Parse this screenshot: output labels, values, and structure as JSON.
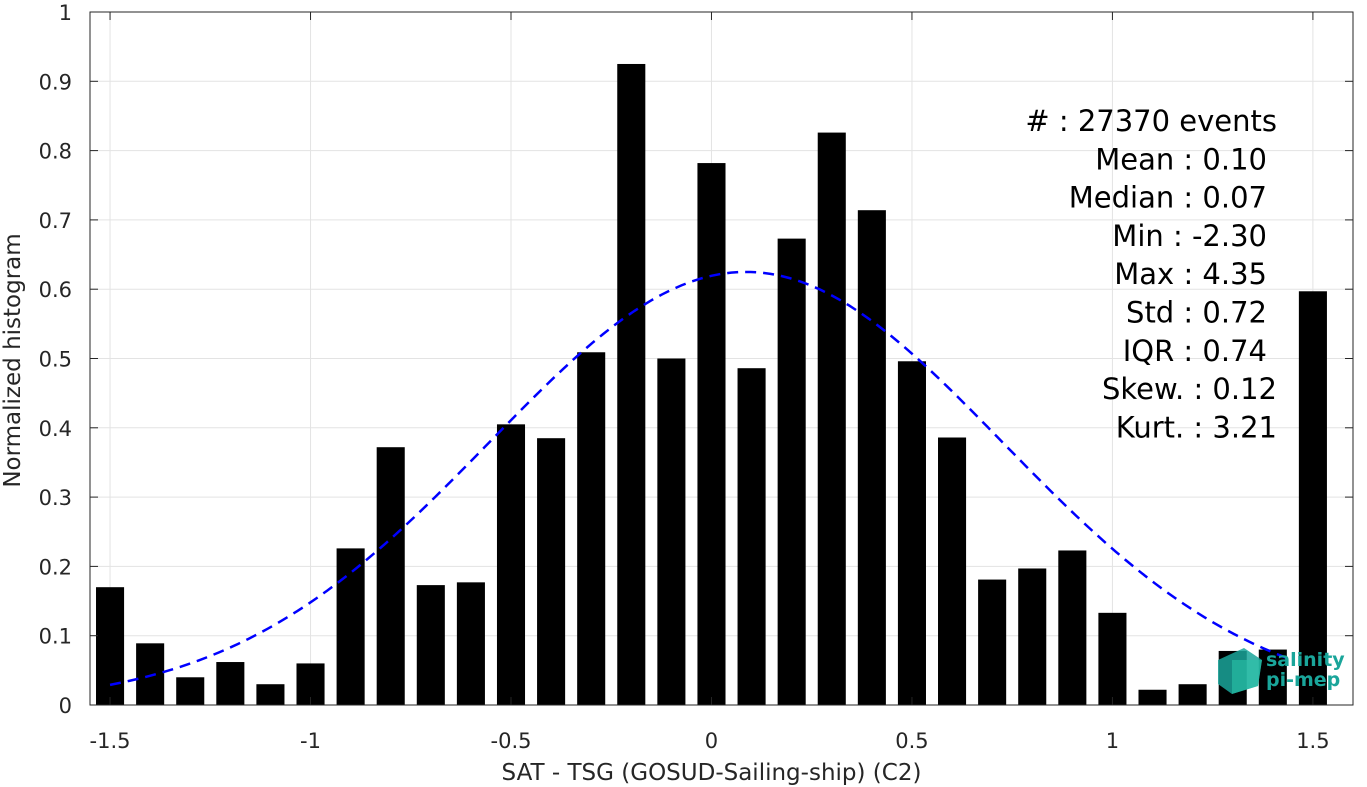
{
  "chart_data": {
    "type": "bar",
    "xlabel": "SAT - TSG (GOSUD-Sailing-ship) (C2)",
    "ylabel": "Normalized histogram",
    "xlim": [
      -1.55,
      1.6
    ],
    "ylim": [
      0,
      1
    ],
    "xticks": [
      -1.5,
      -1,
      -0.5,
      0,
      0.5,
      1,
      1.5
    ],
    "xtick_labels": [
      "-1.5",
      "-1",
      "-0.5",
      "0",
      "0.5",
      "1",
      "1.5"
    ],
    "yticks": [
      0,
      0.1,
      0.2,
      0.3,
      0.4,
      0.5,
      0.6,
      0.7,
      0.8,
      0.9,
      1
    ],
    "ytick_labels": [
      "0",
      "0.1",
      "0.2",
      "0.3",
      "0.4",
      "0.5",
      "0.6",
      "0.7",
      "0.8",
      "0.9",
      "1"
    ],
    "grid": true,
    "bar_width": 0.07,
    "bar_color": "#000000",
    "x": [
      -1.5,
      -1.4,
      -1.3,
      -1.2,
      -1.1,
      -1.0,
      -0.9,
      -0.8,
      -0.7,
      -0.6,
      -0.5,
      -0.4,
      -0.3,
      -0.2,
      -0.1,
      0.0,
      0.1,
      0.2,
      0.3,
      0.4,
      0.5,
      0.6,
      0.7,
      0.8,
      0.9,
      1.0,
      1.1,
      1.2,
      1.3,
      1.4,
      1.5
    ],
    "values": [
      0.17,
      0.089,
      0.04,
      0.062,
      0.03,
      0.06,
      0.226,
      0.372,
      0.173,
      0.177,
      0.405,
      0.385,
      0.509,
      0.925,
      0.5,
      0.782,
      0.486,
      0.673,
      0.826,
      0.714,
      0.496,
      0.386,
      0.181,
      0.197,
      0.223,
      0.133,
      0.022,
      0.03,
      0.078,
      0.08,
      0.597
    ],
    "fit_curve": {
      "style": "dashed",
      "color": "#0000ff",
      "mean": 0.086,
      "std": 0.64,
      "peak": 0.625,
      "x_range": [
        -1.5,
        1.45
      ]
    },
    "stats": [
      {
        "label": "#  ",
        "value": ": 27370 events",
        "dx": 10
      },
      {
        "label": "Mean",
        "value": ": 0.10",
        "dx": 0
      },
      {
        "label": "Median",
        "value": ": 0.07",
        "dx": 0
      },
      {
        "label": "Min",
        "value": ": -2.30",
        "dx": 0
      },
      {
        "label": "Max",
        "value": ": 4.35",
        "dx": 0
      },
      {
        "label": "Std",
        "value": ": 0.72",
        "dx": 0
      },
      {
        "label": "IQR",
        "value": ": 0.74",
        "dx": 0
      },
      {
        "label": "Skew.",
        "value": ": 0.12",
        "dx": 10
      },
      {
        "label": "Kurt.",
        "value": ": 3.21",
        "dx": 10
      }
    ]
  },
  "logo": {
    "line1": "salinity",
    "line2": "pi-mep",
    "color": "#1aa59a"
  }
}
